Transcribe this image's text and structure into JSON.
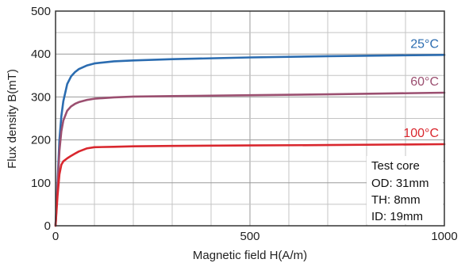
{
  "chart_data": {
    "type": "line",
    "xlabel": "Magnetic field H(A/m)",
    "ylabel": "Flux density B(mT)",
    "xlim": [
      0,
      1000
    ],
    "ylim": [
      0,
      500
    ],
    "x_ticks": [
      "0",
      "500",
      "1000"
    ],
    "y_ticks": [
      "0",
      "100",
      "200",
      "300",
      "400",
      "500"
    ],
    "grid": true,
    "series": [
      {
        "name": "25°C",
        "color": "#2b6cb0",
        "x": [
          0,
          5,
          10,
          15,
          20,
          30,
          40,
          50,
          60,
          80,
          100,
          150,
          200,
          300,
          500,
          700,
          1000
        ],
        "y": [
          0,
          100,
          200,
          255,
          290,
          330,
          348,
          358,
          365,
          373,
          378,
          383,
          385,
          388,
          392,
          395,
          398
        ]
      },
      {
        "name": "60°C",
        "color": "#9b4f70",
        "x": [
          0,
          5,
          10,
          15,
          20,
          30,
          40,
          50,
          60,
          80,
          100,
          150,
          200,
          300,
          500,
          700,
          1000
        ],
        "y": [
          0,
          90,
          175,
          220,
          245,
          268,
          278,
          284,
          288,
          293,
          296,
          299,
          301,
          302,
          304,
          306,
          310
        ]
      },
      {
        "name": "100°C",
        "color": "#d9272e",
        "x": [
          0,
          5,
          10,
          15,
          20,
          30,
          40,
          50,
          60,
          80,
          100,
          150,
          200,
          300,
          500,
          700,
          1000
        ],
        "y": [
          0,
          70,
          120,
          142,
          150,
          157,
          163,
          168,
          173,
          180,
          183,
          184,
          185,
          186,
          187,
          188,
          190
        ]
      }
    ],
    "annotation": {
      "lines": [
        "Test core",
        "OD: 31mm",
        "TH: 8mm",
        "ID: 19mm"
      ]
    }
  }
}
